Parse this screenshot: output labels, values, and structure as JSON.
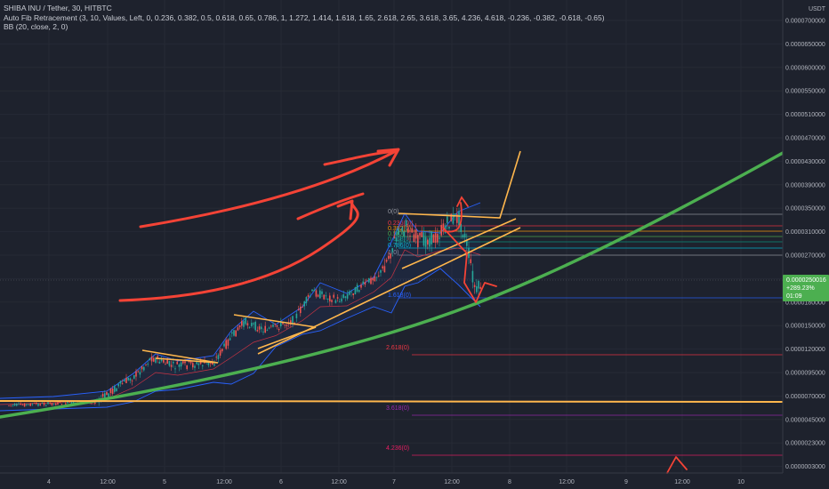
{
  "header": {
    "title": "SHIBA INU / Tether, 30, HITBTC",
    "fib_indicator": "Auto Fib Retracement (3, 10, Values, Left, 0, 0.236, 0.382, 0.5, 0.618, 0.65, 0.786, 1, 1.272, 1.414, 1.618, 1.65, 2.618, 2.65, 3.618, 3.65, 4.236, 4.618, -0.236, -0.382, -0.618, -0.65)",
    "bb_indicator": "BB (20, close, 2, 0)"
  },
  "price_axis": {
    "currency": "USDT",
    "ticks": [
      "0.0000700000",
      "0.0000650000",
      "0.0000600000",
      "0.0000550000",
      "0.0000510000",
      "0.0000470000",
      "0.0000430000",
      "0.0000390000",
      "0.0000350000",
      "0.0000310000",
      "0.0000270000",
      "0.0000210000",
      "0.0000180000",
      "0.0000150000",
      "0.0000120000",
      "0.0000095000",
      "0.0000070000",
      "0.0000045000",
      "0.0000023000",
      "0.0000003000"
    ],
    "current_price": {
      "price": "0.0000250016",
      "change": "+289.23%",
      "countdown": "01:09",
      "color": "#4caf50"
    }
  },
  "time_axis": {
    "ticks": [
      "4",
      "12:00",
      "5",
      "12:00",
      "6",
      "12:00",
      "7",
      "12:00",
      "8",
      "12:00",
      "9",
      "12:00",
      "10"
    ]
  },
  "fib_levels": [
    {
      "label": "0(0)",
      "color": "#9598a1"
    },
    {
      "label": "0.236(0)",
      "color": "#f23645"
    },
    {
      "label": "0.382(0)",
      "color": "#ff9800"
    },
    {
      "label": "0.5(0)",
      "color": "#4caf50"
    },
    {
      "label": "0.618(0)",
      "color": "#089981"
    },
    {
      "label": "0.786(0)",
      "color": "#00bcd4"
    },
    {
      "label": "1(0)",
      "color": "#9598a1"
    },
    {
      "label": "1.618(0)",
      "color": "#2962ff"
    },
    {
      "label": "2.618(0)",
      "color": "#f23645"
    },
    {
      "label": "3.618(0)",
      "color": "#9c27b0"
    },
    {
      "label": "4.236(0)",
      "color": "#e91e63"
    }
  ],
  "chart_data": {
    "type": "line",
    "title": "SHIBA INU / Tether, 30, HITBTC",
    "x": [
      "4",
      "12:00",
      "5",
      "12:00",
      "6",
      "12:00",
      "7",
      "12:00",
      "8"
    ],
    "series": [
      {
        "values": [
          8.5e-06,
          1e-05,
          1.4e-05,
          1.6e-05,
          1.9e-05,
          2.3e-05,
          2.8e-05,
          3.4e-05,
          2.5e-05
        ]
      }
    ],
    "ylabel": "USDT",
    "ylim": [
      3e-07,
      7e-05
    ],
    "grid": true
  }
}
